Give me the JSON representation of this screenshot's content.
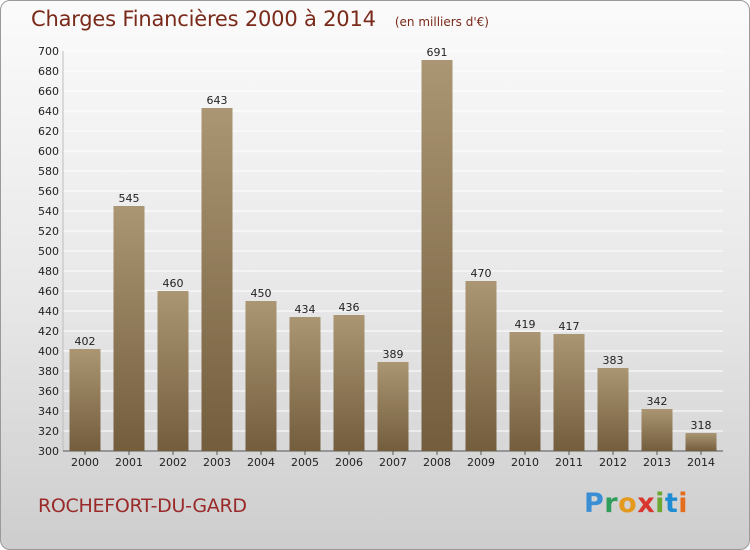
{
  "header": {
    "title": "Charges Financières 2000 à 2014",
    "unit": "(en milliers d'€)"
  },
  "footer": {
    "commune": "ROCHEFORT-DU-GARD",
    "brand": "Proxiti"
  },
  "colors": {
    "bar_top": "#ab9674",
    "bar_bottom": "#735d3c",
    "grid": "#ffffff",
    "title": "#7a2a1a"
  },
  "chart_data": {
    "type": "bar",
    "title": "Charges Financières 2000 à 2014",
    "subtitle": "(en milliers d'€)",
    "categories": [
      "2000",
      "2001",
      "2002",
      "2003",
      "2004",
      "2005",
      "2006",
      "2007",
      "2008",
      "2009",
      "2010",
      "2011",
      "2012",
      "2013",
      "2014"
    ],
    "values": [
      402,
      545,
      460,
      643,
      450,
      434,
      436,
      389,
      691,
      470,
      419,
      417,
      383,
      342,
      318
    ],
    "ylim": [
      300,
      700
    ],
    "ytick_step": 20,
    "grid": true,
    "data_labels": true,
    "legend": "none"
  }
}
